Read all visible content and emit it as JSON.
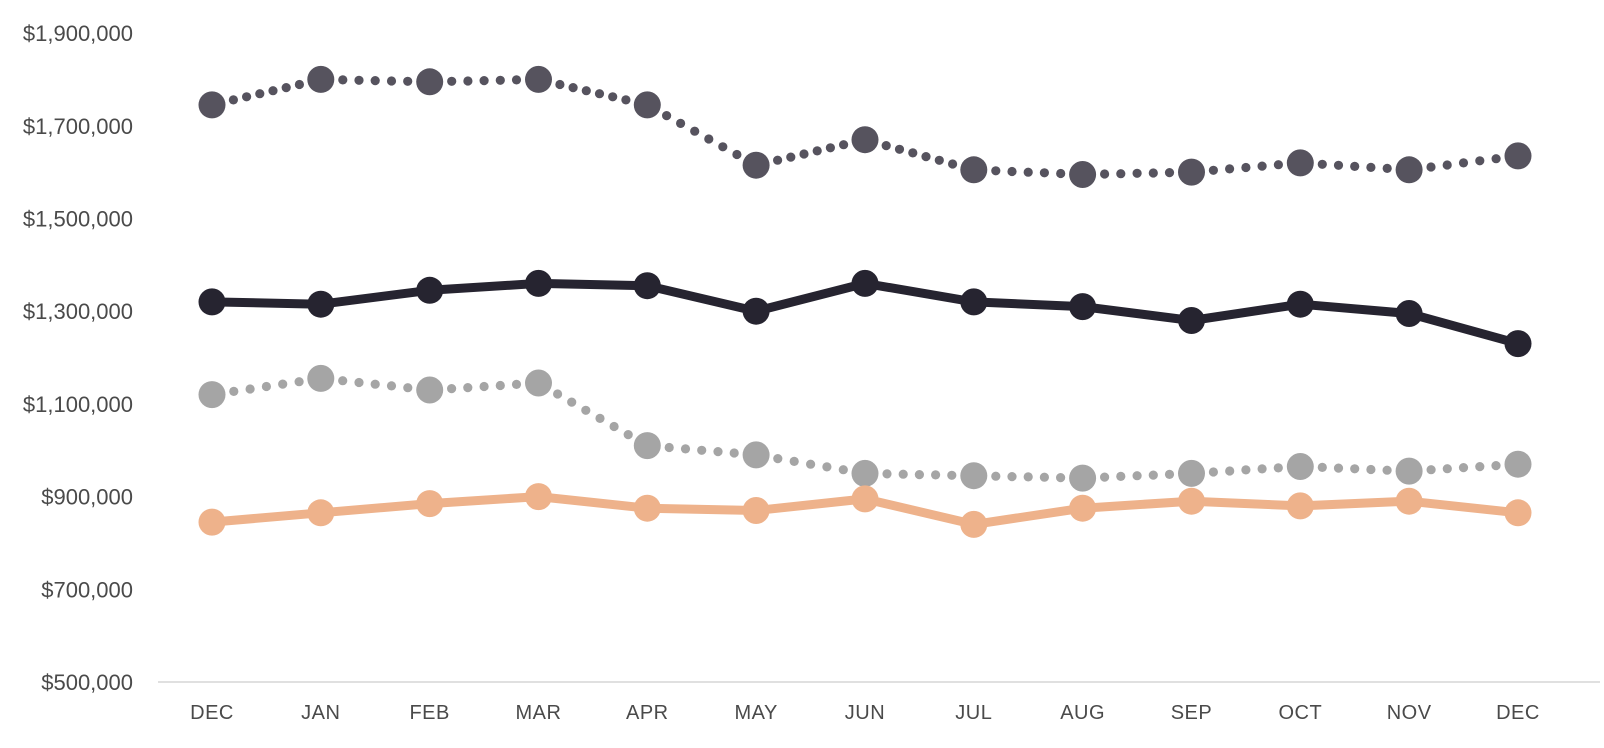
{
  "chart_data": {
    "type": "line",
    "title": "",
    "legend_position": "none",
    "grid": "off",
    "background": "#ffffff",
    "categories": [
      "DEC",
      "JAN",
      "FEB",
      "MAR",
      "APR",
      "MAY",
      "JUN",
      "JUL",
      "AUG",
      "SEP",
      "OCT",
      "NOV",
      "DEC"
    ],
    "x_axis": {
      "labels": [
        "DEC",
        "JAN",
        "FEB",
        "MAR",
        "APR",
        "MAY",
        "JUN",
        "JUL",
        "AUG",
        "SEP",
        "OCT",
        "NOV",
        "DEC"
      ],
      "line_color": "#d6d6d6",
      "label_color": "#4a4a4a"
    },
    "y_axis": {
      "min": 500000,
      "max": 1900000,
      "step": 200000,
      "tick_labels": [
        "$500,000",
        "$700,000",
        "$900,000",
        "$1,100,000",
        "$1,300,000",
        "$1,500,000",
        "$1,700,000",
        "$1,900,000"
      ],
      "label_color": "#4a4a4a"
    },
    "series": [
      {
        "id": "upper-dark-dotted",
        "style": "dotted",
        "color": "#56535e",
        "values": [
          1745000,
          1800000,
          1795000,
          1800000,
          1745000,
          1615000,
          1670000,
          1605000,
          1595000,
          1600000,
          1620000,
          1605000,
          1635000
        ]
      },
      {
        "id": "black-solid",
        "style": "solid",
        "color": "#262430",
        "values": [
          1320000,
          1315000,
          1345000,
          1360000,
          1355000,
          1300000,
          1360000,
          1320000,
          1310000,
          1280000,
          1315000,
          1295000,
          1230000
        ]
      },
      {
        "id": "gray-dotted",
        "style": "dotted",
        "color": "#a5a5a5",
        "values": [
          1120000,
          1155000,
          1130000,
          1145000,
          1010000,
          990000,
          950000,
          945000,
          940000,
          950000,
          965000,
          955000,
          970000
        ]
      },
      {
        "id": "orange-solid",
        "style": "solid",
        "color": "#eeb28b",
        "values": [
          845000,
          865000,
          885000,
          900000,
          875000,
          870000,
          895000,
          840000,
          875000,
          890000,
          880000,
          890000,
          865000
        ]
      }
    ]
  }
}
